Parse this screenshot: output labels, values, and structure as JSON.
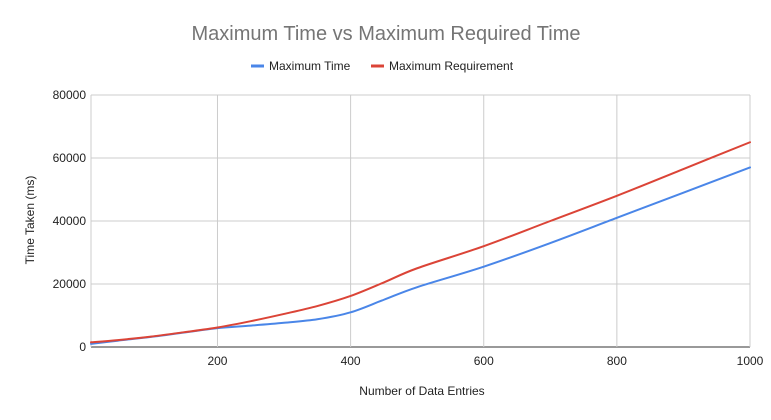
{
  "chart_data": {
    "type": "line",
    "title": "Maximum Time vs Maximum Required Time",
    "xlabel": "Number of Data Entries",
    "ylabel": "Time Taken (ms)",
    "xlim": [
      10,
      1000
    ],
    "ylim": [
      0,
      80000
    ],
    "x_ticks": [
      "200",
      "400",
      "600",
      "800",
      "1000"
    ],
    "y_ticks": [
      "0",
      "20000",
      "40000",
      "60000",
      "80000"
    ],
    "grid": true,
    "legend_position": "top",
    "series": [
      {
        "name": "Maximum Time",
        "color": "#4a86e8",
        "x": [
          10,
          50,
          100,
          150,
          200,
          250,
          300,
          350,
          400,
          450,
          500,
          600,
          700,
          800,
          900,
          1000
        ],
        "y": [
          1000,
          2000,
          3200,
          4600,
          6000,
          6800,
          7700,
          8800,
          11000,
          15000,
          19000,
          25500,
          33000,
          41000,
          49000,
          57000
        ]
      },
      {
        "name": "Maximum Requirement",
        "color": "#db4437",
        "x": [
          10,
          50,
          100,
          150,
          200,
          250,
          300,
          350,
          400,
          450,
          500,
          600,
          700,
          800,
          900,
          1000
        ],
        "y": [
          1500,
          2200,
          3300,
          4700,
          6200,
          8200,
          10500,
          13000,
          16200,
          20500,
          25000,
          32000,
          40000,
          48000,
          56500,
          65000
        ]
      }
    ]
  }
}
